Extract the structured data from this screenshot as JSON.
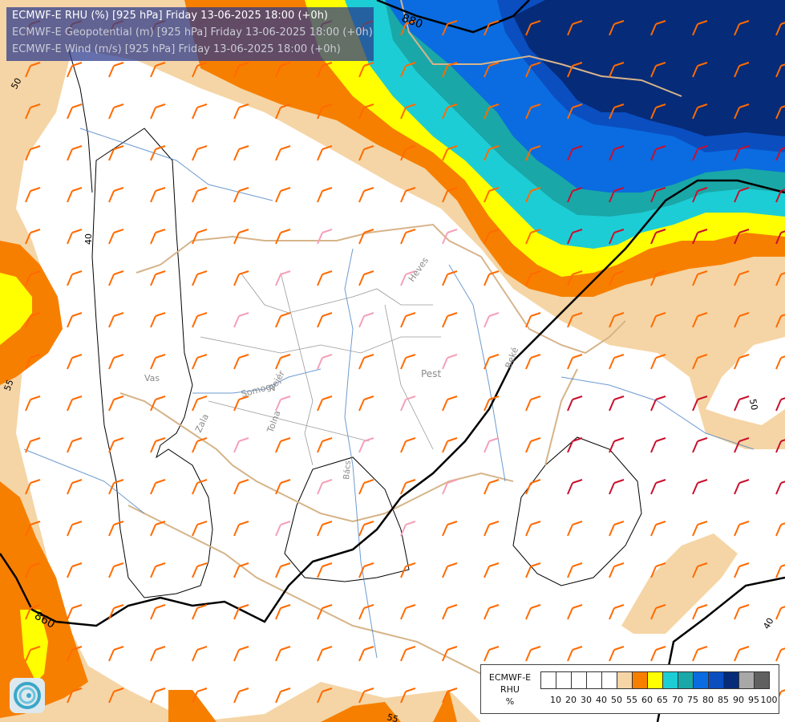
{
  "titles": {
    "line1": "ECMWF-E RHU (%) [925 hPa] Friday 13-06-2025 18:00 (+0h)",
    "line2": "ECMWF-E Geopotential (m) [925 hPa] Friday 13-06-2025 18:00 (+0h)",
    "line3": "ECMWF-E Wind (m/s) [925 hPa] Friday 13-06-2025 18:00 (+0h)"
  },
  "legend": {
    "model": "ECMWF-E",
    "field": "RHU",
    "unit": "%",
    "ticks": [
      "10",
      "20",
      "30",
      "40",
      "50",
      "55",
      "60",
      "65",
      "70",
      "75",
      "80",
      "85",
      "90",
      "95",
      "100"
    ],
    "colors": [
      "#ffffff",
      "#ffffff",
      "#ffffff",
      "#ffffff",
      "#ffffff",
      "#f5d5a5",
      "#f77f00",
      "#ffff00",
      "#1dcdd5",
      "#1aa7a7",
      "#0a6ce0",
      "#0a4ec0",
      "#062b78",
      "#a8a8a8",
      "#606060"
    ]
  },
  "map_labels": {
    "geo_880": "880",
    "geo_860": "860",
    "rhu_40_left": "40",
    "rhu_40_right": "40",
    "rhu_50_topleft": "50",
    "rhu_50_right": "50",
    "rhu_55_left": "55",
    "rhu_55_bottom": "55",
    "county_pest": "Pest",
    "county_heves": "Heves",
    "county_vas": "Vas",
    "county_zala": "Zala",
    "county_somogy": "Somogy",
    "county_fejer": "Fejér",
    "county_tolna": "Tolna",
    "county_bacs": "Bács",
    "county_bekes": "Beké"
  },
  "rhu_colors": {
    "c55": "#f5d5a5",
    "c60": "#f77f00",
    "c65": "#ffff00",
    "c70": "#1dcdd5",
    "c75": "#1aa7a7",
    "c80": "#0a6ce0",
    "c85": "#0a4ec0",
    "c90": "#062b78"
  }
}
